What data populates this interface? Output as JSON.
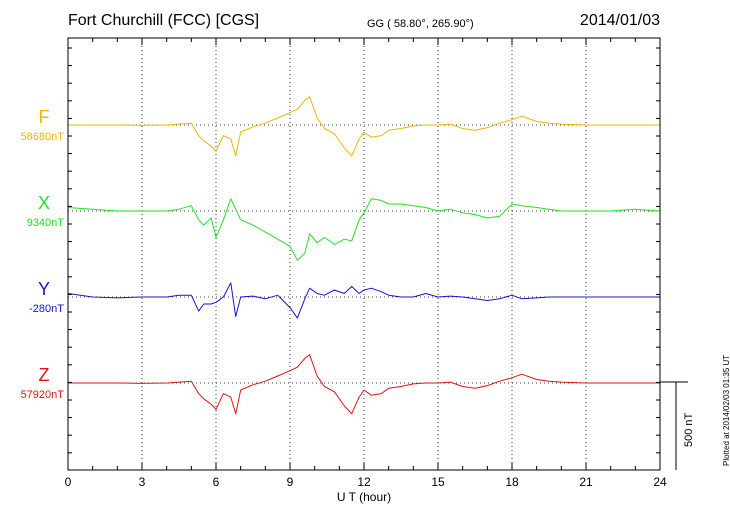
{
  "header": {
    "title": "Fort Churchill (FCC)  [CGS]",
    "coords": "GG ( 58.80°, 265.90°)",
    "date": "2014/01/03"
  },
  "plotted": "Plotted at 2014/02/03 01:35 UT",
  "colors": {
    "F": "#f0b400",
    "X": "#22e022",
    "Y": "#1414d0",
    "Z": "#e01414",
    "grid": "#000000"
  },
  "chart_data": {
    "type": "line",
    "title": "Fort Churchill (FCC)  [CGS]",
    "xlabel": "U T (hour)",
    "ylabel": "",
    "xlim": [
      0,
      24
    ],
    "xticks": [
      0,
      3,
      6,
      9,
      12,
      15,
      18,
      21,
      24
    ],
    "scale_bar": "500 nT",
    "scale_bar_nT": 500,
    "grid": true,
    "x": [
      0,
      1,
      2,
      3,
      4,
      4.5,
      5,
      5.3,
      5.5,
      5.8,
      6,
      6.3,
      6.6,
      6.8,
      7,
      7.5,
      8,
      8.5,
      9,
      9.3,
      9.6,
      9.8,
      10.1,
      10.4,
      10.8,
      11.2,
      11.5,
      11.8,
      12,
      12.3,
      12.7,
      13,
      13.5,
      14,
      14.5,
      15,
      15.5,
      16,
      16.5,
      17,
      17.5,
      18,
      18.4,
      19,
      19.5,
      20,
      21,
      22,
      23,
      24
    ],
    "series": [
      {
        "name": "F",
        "baseline": "58680nT",
        "values": [
          0,
          0,
          0,
          -2,
          0,
          5,
          10,
          -60,
          -90,
          -120,
          -150,
          -60,
          -80,
          -175,
          -40,
          -10,
          10,
          40,
          70,
          90,
          140,
          160,
          40,
          -20,
          -50,
          -130,
          -175,
          -80,
          -40,
          -70,
          -60,
          -30,
          -20,
          -5,
          0,
          0,
          5,
          -20,
          -30,
          -15,
          10,
          30,
          50,
          20,
          10,
          5,
          0,
          0,
          0,
          0
        ]
      },
      {
        "name": "X",
        "baseline": "9340nT",
        "values": [
          20,
          10,
          0,
          0,
          0,
          10,
          30,
          -50,
          -80,
          -40,
          -150,
          -50,
          70,
          10,
          -50,
          -80,
          -120,
          -160,
          -200,
          -280,
          -240,
          -130,
          -180,
          -150,
          -190,
          -160,
          -170,
          -50,
          -10,
          70,
          60,
          40,
          40,
          30,
          20,
          0,
          10,
          -10,
          -20,
          -40,
          -30,
          40,
          30,
          20,
          10,
          0,
          0,
          0,
          10,
          0
        ]
      },
      {
        "name": "Y",
        "baseline": "-280nT",
        "values": [
          20,
          0,
          -5,
          0,
          0,
          10,
          10,
          -80,
          -40,
          -40,
          -30,
          0,
          80,
          -110,
          0,
          5,
          -10,
          10,
          -60,
          -120,
          -10,
          50,
          20,
          10,
          40,
          20,
          60,
          20,
          40,
          50,
          30,
          10,
          0,
          0,
          20,
          0,
          5,
          0,
          -10,
          -20,
          -10,
          10,
          -10,
          -5,
          0,
          0,
          0,
          0,
          0,
          0
        ]
      },
      {
        "name": "Z",
        "baseline": "57920nT",
        "values": [
          0,
          0,
          0,
          -2,
          0,
          5,
          10,
          -60,
          -90,
          -120,
          -150,
          -60,
          -80,
          -175,
          -40,
          -10,
          10,
          40,
          70,
          90,
          140,
          160,
          40,
          -20,
          -50,
          -130,
          -175,
          -80,
          -40,
          -70,
          -60,
          -30,
          -20,
          -5,
          0,
          0,
          5,
          -20,
          -30,
          -15,
          10,
          30,
          50,
          20,
          10,
          5,
          0,
          0,
          0,
          0
        ]
      }
    ]
  }
}
